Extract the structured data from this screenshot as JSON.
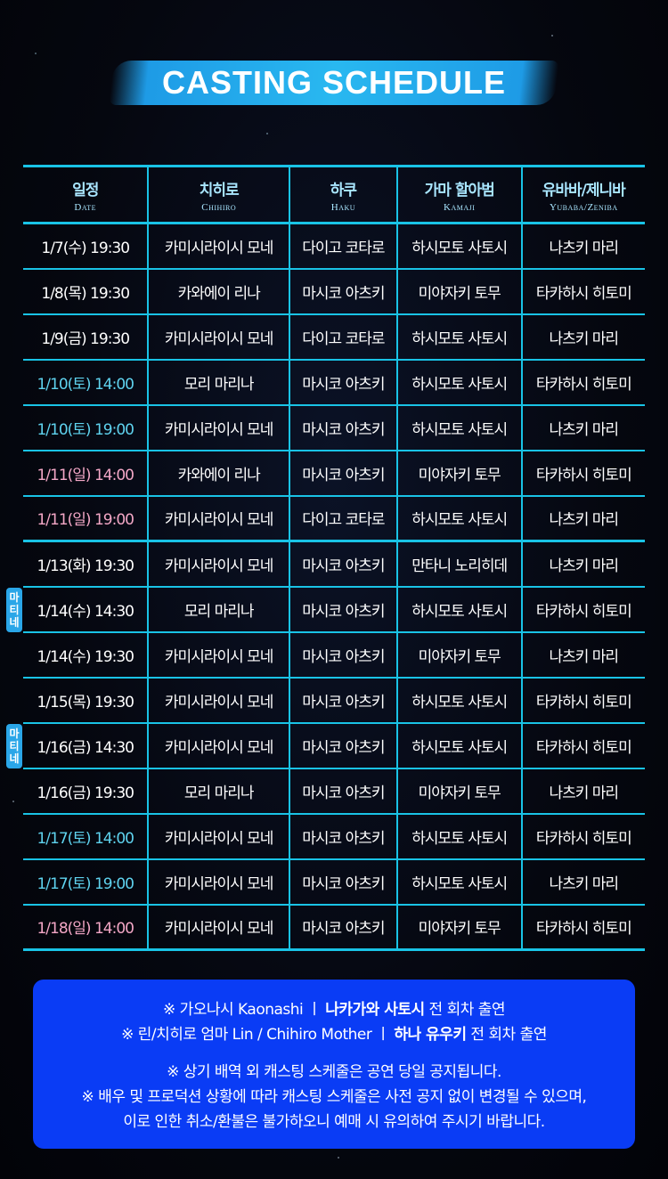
{
  "title": "CASTING SCHEDULE",
  "colors": {
    "accent": "#19c3e6",
    "saturday": "#5fd3ef",
    "sunday": "#f3a7c6",
    "notice_bg": "#0a3cf5",
    "badge": "#2aa6e8"
  },
  "headers": [
    {
      "ko": "일정",
      "en": "Date"
    },
    {
      "ko": "치히로",
      "en": "Chihiro"
    },
    {
      "ko": "하쿠",
      "en": "Haku"
    },
    {
      "ko": "가마 할아범",
      "en": "Kamaji"
    },
    {
      "ko": "유바바/제니바",
      "en": "Yubaba/Zeniba"
    }
  ],
  "matinee_label": [
    "마",
    "티",
    "네"
  ],
  "rows": [
    {
      "date": "1/7(수) 19:30",
      "day": "weekday",
      "cells": [
        "카미시라이시 모네",
        "다이고 코타로",
        "하시모토 사토시",
        "나츠키 마리"
      ]
    },
    {
      "date": "1/8(목) 19:30",
      "day": "weekday",
      "cells": [
        "카와에이 리나",
        "마시코 아츠키",
        "미야자키 토무",
        "타카하시 히토미"
      ]
    },
    {
      "date": "1/9(금) 19:30",
      "day": "weekday",
      "cells": [
        "카미시라이시 모네",
        "다이고 코타로",
        "하시모토 사토시",
        "나츠키 마리"
      ]
    },
    {
      "date": "1/10(토) 14:00",
      "day": "sat",
      "cells": [
        "모리 마리나",
        "마시코 아츠키",
        "하시모토 사토시",
        "타카하시 히토미"
      ]
    },
    {
      "date": "1/10(토) 19:00",
      "day": "sat",
      "cells": [
        "카미시라이시 모네",
        "마시코 아츠키",
        "하시모토 사토시",
        "나츠키 마리"
      ]
    },
    {
      "date": "1/11(일) 14:00",
      "day": "sun",
      "cells": [
        "카와에이 리나",
        "마시코 아츠키",
        "미야자키 토무",
        "타카하시 히토미"
      ]
    },
    {
      "date": "1/11(일) 19:00",
      "day": "sun",
      "sep": true,
      "cells": [
        "카미시라이시 모네",
        "다이고 코타로",
        "하시모토 사토시",
        "나츠키 마리"
      ]
    },
    {
      "date": "1/13(화) 19:30",
      "day": "weekday",
      "cells": [
        "카미시라이시 모네",
        "마시코 아츠키",
        "만타니 노리히데",
        "나츠키 마리"
      ]
    },
    {
      "date": "1/14(수) 14:30",
      "day": "weekday",
      "matinee": true,
      "cells": [
        "모리 마리나",
        "마시코 아츠키",
        "하시모토 사토시",
        "타카하시 히토미"
      ]
    },
    {
      "date": "1/14(수) 19:30",
      "day": "weekday",
      "cells": [
        "카미시라이시 모네",
        "마시코 아츠키",
        "미야자키 토무",
        "나츠키 마리"
      ]
    },
    {
      "date": "1/15(목) 19:30",
      "day": "weekday",
      "cells": [
        "카미시라이시 모네",
        "마시코 아츠키",
        "하시모토 사토시",
        "타카하시 히토미"
      ]
    },
    {
      "date": "1/16(금) 14:30",
      "day": "weekday",
      "matinee": true,
      "cells": [
        "카미시라이시 모네",
        "마시코 아츠키",
        "하시모토 사토시",
        "타카하시 히토미"
      ]
    },
    {
      "date": "1/16(금) 19:30",
      "day": "weekday",
      "cells": [
        "모리 마리나",
        "마시코 아츠키",
        "미야자키 토무",
        "나츠키 마리"
      ]
    },
    {
      "date": "1/17(토) 14:00",
      "day": "sat",
      "cells": [
        "카미시라이시 모네",
        "마시코 아츠키",
        "하시모토 사토시",
        "타카하시 히토미"
      ]
    },
    {
      "date": "1/17(토) 19:00",
      "day": "sat",
      "cells": [
        "카미시라이시 모네",
        "마시코 아츠키",
        "하시모토 사토시",
        "나츠키 마리"
      ]
    },
    {
      "date": "1/18(일) 14:00",
      "day": "sun",
      "cells": [
        "카미시라이시 모네",
        "마시코 아츠키",
        "미야자키 토무",
        "타카하시 히토미"
      ]
    }
  ],
  "notice": {
    "line1_pre": "※ 가오나시 Kaonashi ㅣ",
    "line1_bold": "나카가와 사토시",
    "line1_post": "전 회차 출연",
    "line2_pre": "※ 린/치히로 엄마 Lin / Chihiro Mother ㅣ",
    "line2_bold": "하나 유우키",
    "line2_post": "전 회차 출연",
    "line3": "※ 상기 배역 외 캐스팅 스케줄은 공연 당일 공지됩니다.",
    "line4": "※ 배우 및 프로덕션 상황에 따라 캐스팅 스케줄은 사전 공지 없이 변경될 수 있으며,",
    "line5": "이로 인한 취소/환불은 불가하오니 예매 시 유의하여 주시기 바랍니다."
  }
}
